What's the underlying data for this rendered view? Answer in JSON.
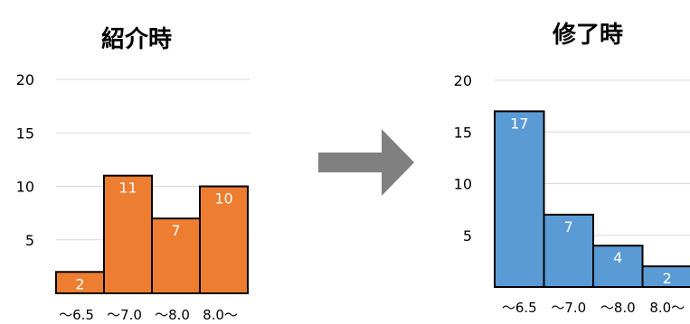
{
  "arrow_color": "#808080",
  "chart_data": [
    {
      "type": "bar",
      "title": "紹介時",
      "categories": [
        "～6.5",
        "～7.0",
        "～8.0",
        "8.0～"
      ],
      "values": [
        2,
        11,
        7,
        10
      ],
      "yticks": [
        5,
        10,
        15,
        20
      ],
      "ylim": [
        0,
        20
      ],
      "grid": true,
      "color": "#ED7D31"
    },
    {
      "type": "bar",
      "title": "修了時",
      "categories": [
        "～6.5",
        "～7.0",
        "～8.0",
        "8.0～"
      ],
      "values": [
        17,
        7,
        4,
        2
      ],
      "yticks": [
        5,
        10,
        15,
        20
      ],
      "ylim": [
        0,
        20
      ],
      "grid": true,
      "color": "#5B9BD5"
    }
  ]
}
